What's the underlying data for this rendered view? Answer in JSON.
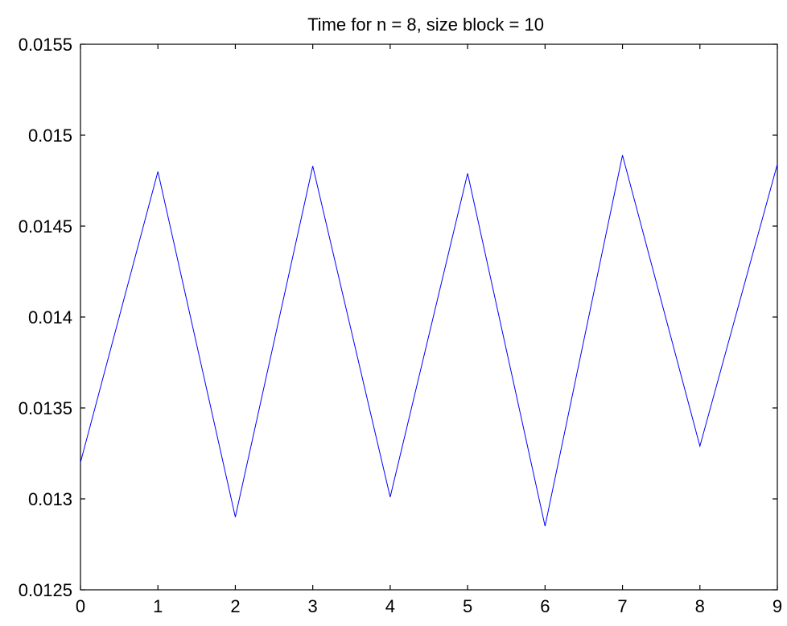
{
  "chart_data": {
    "type": "line",
    "title": "Time for  n = 8, size block = 10",
    "xlabel": "",
    "ylabel": "",
    "xlim": [
      0,
      9
    ],
    "ylim": [
      0.0125,
      0.0155
    ],
    "x_ticks": [
      "0",
      "1",
      "2",
      "3",
      "4",
      "5",
      "6",
      "7",
      "8",
      "9"
    ],
    "y_ticks": [
      "0.0125",
      "0.013",
      "0.0135",
      "0.014",
      "0.0145",
      "0.015",
      "0.0155"
    ],
    "grid": false,
    "series": [
      {
        "color": "#0000ff",
        "x": [
          0,
          1,
          2,
          3,
          4,
          5,
          6,
          7,
          8,
          9
        ],
        "values": [
          0.0132,
          0.0148,
          0.0129,
          0.01483,
          0.01301,
          0.01479,
          0.01285,
          0.01489,
          0.01329,
          0.01484
        ]
      }
    ]
  }
}
